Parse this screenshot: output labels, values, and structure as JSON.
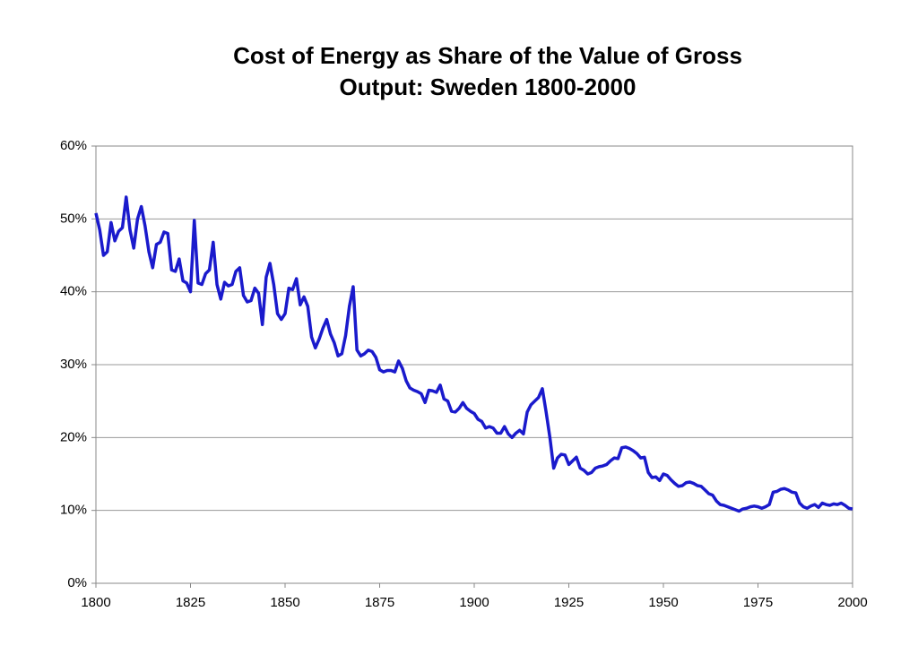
{
  "chart_data": {
    "type": "line",
    "title": [
      "Cost of Energy as Share of the Value of Gross",
      "Output: Sweden 1800-2000"
    ],
    "x": [
      1800,
      1801,
      1802,
      1803,
      1804,
      1805,
      1806,
      1807,
      1808,
      1809,
      1810,
      1811,
      1812,
      1813,
      1814,
      1815,
      1816,
      1817,
      1818,
      1819,
      1820,
      1821,
      1822,
      1823,
      1824,
      1825,
      1826,
      1827,
      1828,
      1829,
      1830,
      1831,
      1832,
      1833,
      1834,
      1835,
      1836,
      1837,
      1838,
      1839,
      1840,
      1841,
      1842,
      1843,
      1844,
      1845,
      1846,
      1847,
      1848,
      1849,
      1850,
      1851,
      1852,
      1853,
      1854,
      1855,
      1856,
      1857,
      1858,
      1859,
      1860,
      1861,
      1862,
      1863,
      1864,
      1865,
      1866,
      1867,
      1868,
      1869,
      1870,
      1871,
      1872,
      1873,
      1874,
      1875,
      1876,
      1877,
      1878,
      1879,
      1880,
      1881,
      1882,
      1883,
      1884,
      1885,
      1886,
      1887,
      1888,
      1889,
      1890,
      1891,
      1892,
      1893,
      1894,
      1895,
      1896,
      1897,
      1898,
      1899,
      1900,
      1901,
      1902,
      1903,
      1904,
      1905,
      1906,
      1907,
      1908,
      1909,
      1910,
      1911,
      1912,
      1913,
      1914,
      1915,
      1916,
      1917,
      1918,
      1919,
      1920,
      1921,
      1922,
      1923,
      1924,
      1925,
      1926,
      1927,
      1928,
      1929,
      1930,
      1931,
      1932,
      1933,
      1934,
      1935,
      1936,
      1937,
      1938,
      1939,
      1940,
      1941,
      1942,
      1943,
      1944,
      1945,
      1946,
      1947,
      1948,
      1949,
      1950,
      1951,
      1952,
      1953,
      1954,
      1955,
      1956,
      1957,
      1958,
      1959,
      1960,
      1961,
      1962,
      1963,
      1964,
      1965,
      1966,
      1967,
      1968,
      1969,
      1970,
      1971,
      1972,
      1973,
      1974,
      1975,
      1976,
      1977,
      1978,
      1979,
      1980,
      1981,
      1982,
      1983,
      1984,
      1985,
      1986,
      1987,
      1988,
      1989,
      1990,
      1991,
      1992,
      1993,
      1994,
      1995,
      1996,
      1997,
      1998,
      1999,
      2000
    ],
    "series": [
      {
        "color": "#1a1acc",
        "values": [
          50.8,
          48.5,
          45,
          45.5,
          49.5,
          47,
          48.3,
          48.8,
          53,
          48.5,
          46,
          50,
          51.7,
          49,
          45.5,
          43.3,
          46.5,
          46.8,
          48.2,
          48,
          43,
          42.8,
          44.5,
          41.5,
          41.2,
          40,
          49.8,
          41.2,
          41,
          42.5,
          43,
          46.8,
          41,
          39,
          41.3,
          40.8,
          41,
          42.8,
          43.3,
          39.5,
          38.6,
          38.8,
          40.5,
          39.8,
          35.5,
          42,
          43.9,
          41,
          37,
          36.2,
          37,
          40.5,
          40.3,
          41.8,
          38.2,
          39.3,
          38,
          33.8,
          32.3,
          33.5,
          35,
          36.2,
          34.2,
          33,
          31.2,
          31.5,
          34,
          38,
          40.7,
          32,
          31.2,
          31.5,
          32,
          31.8,
          31,
          29.3,
          29,
          29.2,
          29.2,
          29,
          30.5,
          29.5,
          27.8,
          26.8,
          26.5,
          26.3,
          26,
          24.8,
          26.5,
          26.4,
          26.2,
          27.2,
          25.3,
          25,
          23.6,
          23.5,
          24,
          24.8,
          24,
          23.6,
          23.3,
          22.5,
          22.2,
          21.3,
          21.5,
          21.3,
          20.6,
          20.6,
          21.5,
          20.5,
          20,
          20.6,
          21,
          20.5,
          23.5,
          24.5,
          25,
          25.5,
          26.7,
          23.5,
          20,
          15.8,
          17.2,
          17.7,
          17.6,
          16.3,
          16.8,
          17.3,
          15.8,
          15.5,
          15,
          15.2,
          15.8,
          16,
          16.1,
          16.3,
          16.8,
          17.2,
          17.1,
          18.6,
          18.7,
          18.5,
          18.2,
          17.8,
          17.2,
          17.3,
          15.2,
          14.5,
          14.6,
          14.1,
          15,
          14.8,
          14.2,
          13.7,
          13.3,
          13.4,
          13.8,
          13.9,
          13.7,
          13.4,
          13.3,
          12.8,
          12.3,
          12.1,
          11.3,
          10.8,
          10.7,
          10.5,
          10.3,
          10.1,
          9.9,
          10.2,
          10.3,
          10.5,
          10.6,
          10.5,
          10.3,
          10.5,
          10.8,
          12.5,
          12.6,
          12.9,
          13,
          12.8,
          12.5,
          12.4,
          11,
          10.5,
          10.3,
          10.6,
          10.8,
          10.4,
          11,
          10.8,
          10.7,
          10.9,
          10.8,
          11,
          10.7,
          10.3,
          10.2
        ]
      }
    ],
    "xlim": [
      1800,
      2000
    ],
    "xticks": [
      1800,
      1825,
      1850,
      1875,
      1900,
      1925,
      1950,
      1975,
      2000
    ],
    "ylim": [
      0,
      60
    ],
    "yticks": [
      {
        "value": 0,
        "label": "0%"
      },
      {
        "value": 10,
        "label": "10%"
      },
      {
        "value": 20,
        "label": "20%"
      },
      {
        "value": 30,
        "label": "30%"
      },
      {
        "value": 40,
        "label": "40%"
      },
      {
        "value": 50,
        "label": "50%"
      },
      {
        "value": 60,
        "label": "60%"
      }
    ],
    "grid": true
  }
}
